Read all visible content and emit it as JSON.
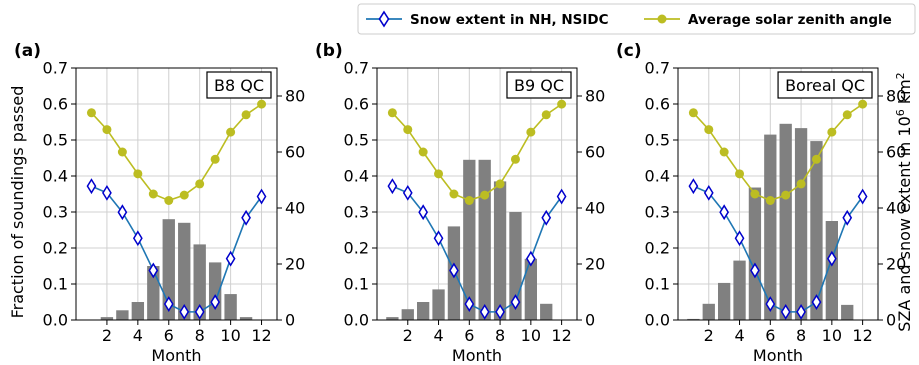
{
  "legend": {
    "snow_label": "Snow extent in NH, NSIDC",
    "sza_label": "Average solar zenith angle"
  },
  "axes_text": {
    "left_ylabel": "Fraction of soundings passed",
    "right_ylabel_main": "SZA and snow extent in 10",
    "right_ylabel_exp": "6",
    "right_ylabel_unit": " km",
    "right_ylabel_unit_exp": "2"
  },
  "chart_data": [
    {
      "type": "bar",
      "panel_label": "(a)",
      "qc_label": "B8 QC",
      "xlabel": "Month",
      "ylabel": "Fraction of soundings passed",
      "x": [
        1,
        2,
        3,
        4,
        5,
        6,
        7,
        8,
        9,
        10,
        11,
        12
      ],
      "xticks": [
        "2",
        "4",
        "6",
        "8",
        "10",
        "12"
      ],
      "ylim": [
        0,
        0.7
      ],
      "yticks": [
        "0.0",
        "0.1",
        "0.2",
        "0.3",
        "0.4",
        "0.5",
        "0.6",
        "0.7"
      ],
      "y2lim": [
        0,
        90
      ],
      "y2ticks": [
        "0",
        "20",
        "40",
        "60",
        "80"
      ],
      "grid": true,
      "values": [
        0.0,
        0.008,
        0.027,
        0.05,
        0.15,
        0.28,
        0.27,
        0.21,
        0.16,
        0.072,
        0.008,
        0.0
      ],
      "series": [
        {
          "name": "Snow extent in NH, NSIDC",
          "axis": "right",
          "color": "#1f77b4",
          "values": [
            47.8,
            45.4,
            38.5,
            29.2,
            17.7,
            5.7,
            2.9,
            2.9,
            6.4,
            21.9,
            36.5,
            44.1
          ]
        },
        {
          "name": "Average solar zenith angle",
          "axis": "right",
          "color": "#bcbd22",
          "values": [
            74.0,
            68.0,
            60.0,
            52.2,
            45.0,
            42.7,
            44.6,
            48.6,
            57.4,
            67.1,
            73.3,
            77.1
          ]
        }
      ]
    },
    {
      "type": "bar",
      "panel_label": "(b)",
      "qc_label": "B9 QC",
      "xlabel": "Month",
      "ylabel": "",
      "x": [
        1,
        2,
        3,
        4,
        5,
        6,
        7,
        8,
        9,
        10,
        11,
        12
      ],
      "xticks": [
        "2",
        "4",
        "6",
        "8",
        "10",
        "12"
      ],
      "ylim": [
        0,
        0.7
      ],
      "yticks": [
        "0.0",
        "0.1",
        "0.2",
        "0.3",
        "0.4",
        "0.5",
        "0.6",
        "0.7"
      ],
      "y2lim": [
        0,
        90
      ],
      "y2ticks": [
        "0",
        "20",
        "40",
        "60",
        "80"
      ],
      "grid": true,
      "values": [
        0.008,
        0.03,
        0.05,
        0.085,
        0.26,
        0.445,
        0.445,
        0.385,
        0.3,
        0.17,
        0.045,
        0.0
      ],
      "series": [
        {
          "name": "Snow extent in NH, NSIDC",
          "axis": "right",
          "color": "#1f77b4",
          "values": [
            47.8,
            45.4,
            38.5,
            29.2,
            17.7,
            5.7,
            2.9,
            2.9,
            6.4,
            21.9,
            36.5,
            44.1
          ]
        },
        {
          "name": "Average solar zenith angle",
          "axis": "right",
          "color": "#bcbd22",
          "values": [
            74.0,
            68.0,
            60.0,
            52.2,
            45.0,
            42.7,
            44.6,
            48.6,
            57.4,
            67.1,
            73.3,
            77.1
          ]
        }
      ]
    },
    {
      "type": "bar",
      "panel_label": "(c)",
      "qc_label": "Boreal QC",
      "xlabel": "Month",
      "ylabel": "",
      "y2label": "SZA and snow extent in 10^6 km^2",
      "x": [
        1,
        2,
        3,
        4,
        5,
        6,
        7,
        8,
        9,
        10,
        11,
        12
      ],
      "xticks": [
        "2",
        "4",
        "6",
        "8",
        "10",
        "12"
      ],
      "ylim": [
        0,
        0.7
      ],
      "yticks": [
        "0.0",
        "0.1",
        "0.2",
        "0.3",
        "0.4",
        "0.5",
        "0.6",
        "0.7"
      ],
      "y2lim": [
        0,
        90
      ],
      "y2ticks": [
        "0",
        "20",
        "40",
        "60",
        "80"
      ],
      "grid": true,
      "values": [
        0.003,
        0.045,
        0.103,
        0.165,
        0.368,
        0.515,
        0.545,
        0.533,
        0.497,
        0.275,
        0.042,
        0.0
      ],
      "series": [
        {
          "name": "Snow extent in NH, NSIDC",
          "axis": "right",
          "color": "#1f77b4",
          "values": [
            47.8,
            45.4,
            38.5,
            29.2,
            17.7,
            5.7,
            2.9,
            2.9,
            6.4,
            21.9,
            36.5,
            44.1
          ]
        },
        {
          "name": "Average solar zenith angle",
          "axis": "right",
          "color": "#bcbd22",
          "values": [
            74.0,
            68.0,
            60.0,
            52.2,
            45.0,
            42.7,
            44.6,
            48.6,
            57.4,
            67.1,
            73.3,
            77.1
          ]
        }
      ]
    }
  ],
  "colors": {
    "bar": "#808080",
    "snow": "#1f77b4",
    "snow_marker_edge": "#0000cc",
    "sza": "#bcbd22",
    "grid": "#d0d0d0"
  }
}
